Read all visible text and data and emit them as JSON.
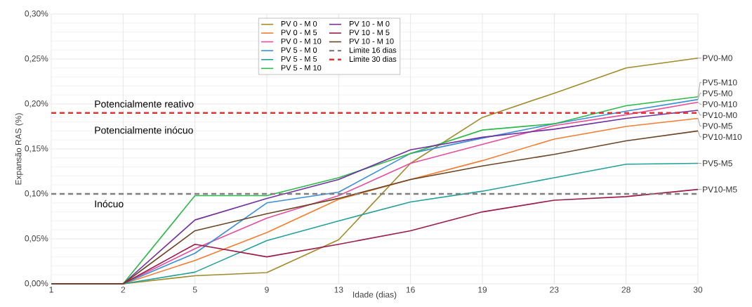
{
  "chart_data": {
    "type": "line",
    "xlabel": "Idade (dias)",
    "ylabel": "Expansão RAS (%)",
    "categories": [
      "1",
      "2",
      "5",
      "9",
      "13",
      "16",
      "19",
      "23",
      "28",
      "30"
    ],
    "ylim": [
      0,
      0.3
    ],
    "yticks": [
      {
        "value": 0,
        "label": "0,00%"
      },
      {
        "value": 0.05,
        "label": "0,05%"
      },
      {
        "value": 0.1,
        "label": "0,10%"
      },
      {
        "value": 0.15,
        "label": "0,15%"
      },
      {
        "value": 0.2,
        "label": "0,20%"
      },
      {
        "value": 0.25,
        "label": "0,25%"
      },
      {
        "value": 0.3,
        "label": "0,30%"
      }
    ],
    "grid": true,
    "legend": "top",
    "line_style": "solid",
    "series": [
      {
        "name": "PV 0 - M 0",
        "color": "#a08a2a",
        "values": [
          0,
          0,
          0.009,
          0.0125,
          0.049,
          0.134,
          0.185,
          0.212,
          0.24,
          0.251
        ]
      },
      {
        "name": "PV 0 - M 5",
        "color": "#f47c30",
        "values": [
          0,
          0,
          0.026,
          0.057,
          0.094,
          0.116,
          0.137,
          0.161,
          0.175,
          0.184
        ]
      },
      {
        "name": "PV 0 - M 10",
        "color": "#e84c9c",
        "values": [
          0,
          0,
          0.039,
          0.073,
          0.098,
          0.134,
          0.155,
          0.176,
          0.188,
          0.202
        ]
      },
      {
        "name": "PV 5 - M 0",
        "color": "#3a8ed8",
        "values": [
          0,
          0,
          0.034,
          0.09,
          0.102,
          0.145,
          0.162,
          0.178,
          0.192,
          0.205
        ]
      },
      {
        "name": "PV 5 - M 5",
        "color": "#23a09a",
        "values": [
          0,
          0,
          0.013,
          0.048,
          0.07,
          0.091,
          0.103,
          0.118,
          0.133,
          0.134
        ]
      },
      {
        "name": "PV 5 - M 10",
        "color": "#2db84a",
        "values": [
          0,
          0,
          0.098,
          0.098,
          0.118,
          0.145,
          0.171,
          0.178,
          0.198,
          0.208
        ]
      },
      {
        "name": "PV 10 - M 0",
        "color": "#7030a0",
        "values": [
          0,
          0,
          0.071,
          0.095,
          0.116,
          0.149,
          0.163,
          0.172,
          0.184,
          0.193
        ]
      },
      {
        "name": "PV 10 - M 5",
        "color": "#9b1b4a",
        "values": [
          0,
          0,
          0.044,
          0.03,
          0.044,
          0.059,
          0.08,
          0.093,
          0.097,
          0.105
        ]
      },
      {
        "name": "PV 10 - M 10",
        "color": "#6b4424",
        "values": [
          0,
          0,
          0.059,
          0.078,
          0.095,
          0.116,
          0.131,
          0.144,
          0.159,
          0.17
        ]
      }
    ],
    "ref_lines": [
      {
        "axis": "y",
        "value": 0.1,
        "label": "Limite 16 dias",
        "color": "#7f7f7f",
        "line_style": "dashed"
      },
      {
        "axis": "y",
        "value": 0.19,
        "label": "Limite 30 dias",
        "color": "#e8302c",
        "line_style": "dashed"
      }
    ],
    "annotations": [
      "Potencialmente reativo",
      "Potencialmente inócuo",
      "Inócuo",
      {
        "text": "PV0-M0",
        "x": "30",
        "y": 0.251
      },
      {
        "text": "PV5-M10",
        "x": "30",
        "y": 0.208
      },
      {
        "text": "PV5-M0",
        "x": "30",
        "y": 0.205
      },
      {
        "text": "PV0-M10",
        "x": "30",
        "y": 0.202
      },
      {
        "text": "PV10-M0",
        "x": "30",
        "y": 0.193
      },
      {
        "text": "PV0-M5",
        "x": "30",
        "y": 0.184
      },
      {
        "text": "PV10-M10",
        "x": "30",
        "y": 0.17
      },
      {
        "text": "PV5-M5",
        "x": "30",
        "y": 0.134
      },
      {
        "text": "PV10-M5",
        "x": "30",
        "y": 0.105
      }
    ]
  }
}
